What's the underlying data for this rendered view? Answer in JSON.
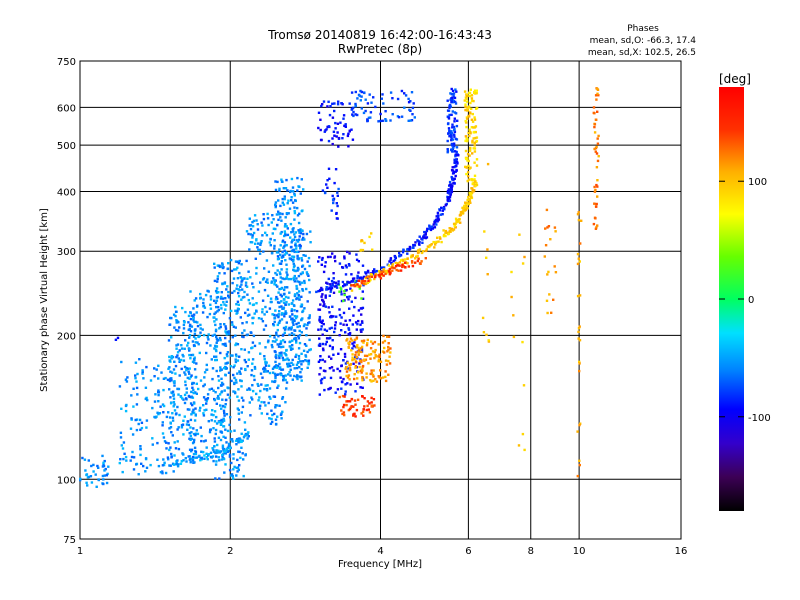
{
  "chart_data": {
    "type": "scatter",
    "title": "Tromsø 20140819 16:42:00-16:43:43",
    "subtitle": "RwPretec (8p)",
    "xlabel": "Frequency [MHz]",
    "ylabel": "Stationary phase Virtual Height [km]",
    "x_scale": "log",
    "y_scale": "log",
    "xlim": [
      1,
      16
    ],
    "ylim": [
      75,
      750
    ],
    "x_ticks": [
      1,
      2,
      4,
      6,
      8,
      10,
      16
    ],
    "x_tick_labels": [
      "1",
      "2",
      "4",
      "6",
      "8",
      "10",
      "16"
    ],
    "y_ticks": [
      75,
      100,
      200,
      300,
      400,
      500,
      600,
      750
    ],
    "y_tick_labels": [
      "75",
      "100",
      "200",
      "300",
      "400",
      "500",
      "600",
      "750"
    ],
    "grid": true,
    "stats": {
      "title": "Phases",
      "line_o": "mean, sd,O: -66.3, 17.4",
      "line_x": "mean, sd,X: 102.5, 26.5"
    },
    "colorbar": {
      "label": "[deg]",
      "range": [
        -180,
        180
      ],
      "ticks": [
        100,
        0,
        -100
      ],
      "tick_labels": [
        "100",
        "0",
        "-100"
      ]
    },
    "clusters": [
      {
        "f": [
          1.0,
          1.14
        ],
        "h": [
          95,
          112
        ],
        "phase": -55,
        "n": 40
      },
      {
        "f": [
          1.18,
          1.2
        ],
        "h": [
          195,
          198
        ],
        "phase": -90,
        "n": 2
      },
      {
        "f": [
          1.2,
          1.55
        ],
        "h": [
          102,
          180
        ],
        "phase": -55,
        "n": 140
      },
      {
        "f": [
          1.5,
          1.72
        ],
        "h": [
          110,
          230
        ],
        "phase": -55,
        "n": 200
      },
      {
        "f": [
          1.65,
          1.98
        ],
        "h": [
          110,
          250
        ],
        "phase": -55,
        "n": 240
      },
      {
        "f": [
          1.85,
          2.15
        ],
        "h": [
          100,
          290
        ],
        "phase": -55,
        "n": 280
      },
      {
        "f": [
          2.15,
          2.6
        ],
        "h": [
          130,
          360
        ],
        "phase": -55,
        "n": 300
      },
      {
        "f": [
          2.45,
          2.8
        ],
        "h": [
          160,
          430
        ],
        "phase": -55,
        "n": 330
      },
      {
        "f": [
          2.65,
          2.9
        ],
        "h": [
          170,
          340
        ],
        "phase": -58,
        "n": 120
      },
      {
        "f": [
          3.0,
          3.7
        ],
        "h": [
          150,
          300
        ],
        "phase": -95,
        "n": 240
      },
      {
        "f": [
          3.0,
          3.55
        ],
        "h": [
          490,
          620
        ],
        "phase": -95,
        "n": 60
      },
      {
        "f": [
          3.5,
          4.7
        ],
        "h": [
          560,
          650
        ],
        "phase": -75,
        "n": 70
      },
      {
        "f": [
          3.05,
          3.3
        ],
        "h": [
          350,
          450
        ],
        "phase": -80,
        "n": 25
      },
      {
        "f": [
          3.3,
          3.9
        ],
        "h": [
          135,
          150
        ],
        "phase": 150,
        "n": 50
      },
      {
        "f": [
          3.4,
          4.2
        ],
        "h": [
          160,
          200
        ],
        "phase": 125,
        "n": 140
      },
      {
        "f": [
          3.3,
          3.7
        ],
        "h": [
          235,
          260
        ],
        "phase": 20,
        "n": 12
      },
      {
        "f": [
          3.6,
          3.9
        ],
        "h": [
          300,
          330
        ],
        "phase": 110,
        "n": 10
      },
      {
        "f": [
          5.45,
          5.7
        ],
        "h": [
          480,
          660
        ],
        "phase": -80,
        "n": 90
      },
      {
        "f": [
          5.9,
          6.25
        ],
        "h": [
          420,
          660
        ],
        "phase": 105,
        "n": 110
      },
      {
        "f": [
          9.9,
          10.1
        ],
        "h": [
          100,
          380
        ],
        "phase": 120,
        "n": 25
      },
      {
        "f": [
          10.7,
          10.95
        ],
        "h": [
          330,
          660
        ],
        "phase": 130,
        "n": 45
      },
      {
        "f": [
          8.5,
          9.0
        ],
        "h": [
          200,
          380
        ],
        "phase": 125,
        "n": 18
      },
      {
        "f": [
          7.2,
          7.8
        ],
        "h": [
          115,
          330
        ],
        "phase": 110,
        "n": 12
      },
      {
        "f": [
          6.4,
          6.6
        ],
        "h": [
          140,
          460
        ],
        "phase": 115,
        "n": 10
      }
    ],
    "traces": [
      {
        "f": [
          3.0,
          3.6,
          4.2,
          4.8,
          5.2,
          5.5,
          5.6,
          5.7
        ],
        "h": [
          245,
          262,
          285,
          315,
          350,
          390,
          430,
          480
        ],
        "phase": -90,
        "n": 230
      },
      {
        "f": [
          3.5,
          4.0,
          4.6,
          5.2,
          5.7,
          6.0,
          6.2
        ],
        "h": [
          250,
          270,
          290,
          315,
          345,
          380,
          420
        ],
        "phase": 110,
        "n": 190
      },
      {
        "f": [
          3.5,
          4.0,
          4.5,
          5.0
        ],
        "h": [
          252,
          268,
          280,
          290
        ],
        "phase": 150,
        "n": 60
      },
      {
        "f": [
          1.4,
          1.7,
          1.95,
          2.2
        ],
        "h": [
          105,
          110,
          115,
          125
        ],
        "phase": -50,
        "n": 80
      }
    ]
  }
}
